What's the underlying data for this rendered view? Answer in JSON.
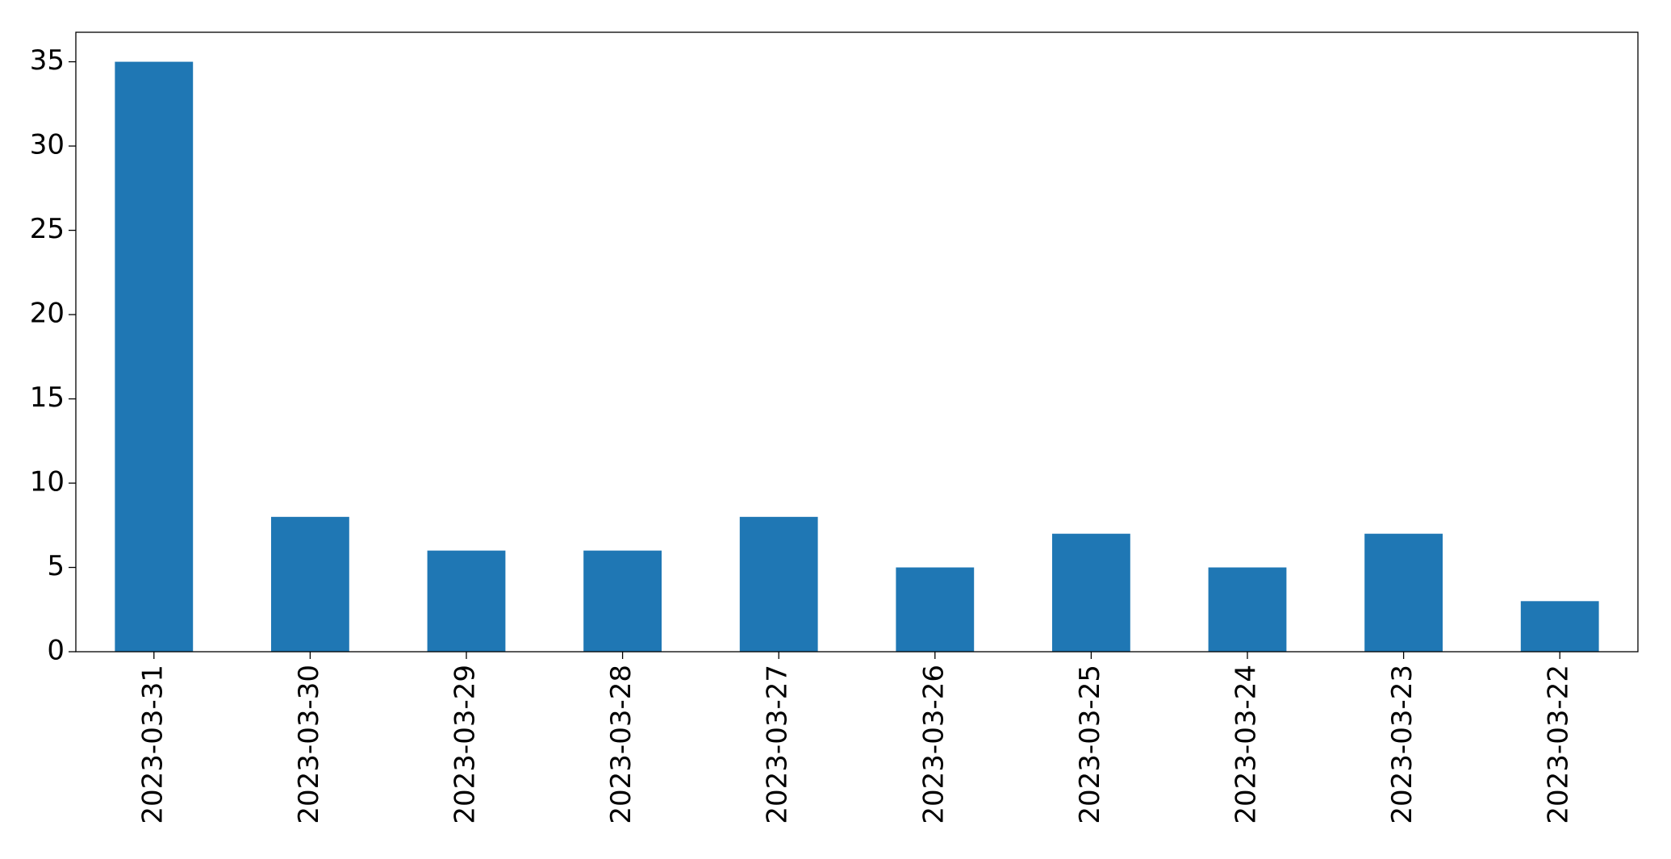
{
  "chart_data": {
    "type": "bar",
    "categories": [
      "2023-03-31",
      "2023-03-30",
      "2023-03-29",
      "2023-03-28",
      "2023-03-27",
      "2023-03-26",
      "2023-03-25",
      "2023-03-24",
      "2023-03-23",
      "2023-03-22"
    ],
    "values": [
      35,
      8,
      6,
      6,
      8,
      5,
      7,
      5,
      7,
      3
    ],
    "color": "#1f77b4",
    "ylim": [
      0,
      36.75
    ],
    "yticks": [
      0,
      5,
      10,
      15,
      20,
      25,
      30,
      35
    ],
    "grid": false
  }
}
